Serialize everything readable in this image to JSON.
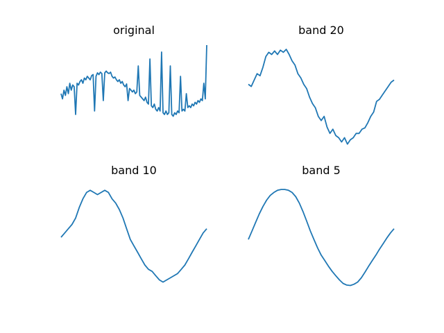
{
  "figure": {
    "line_color": "#1f77b4",
    "axes_visible": false,
    "grid": false
  },
  "chart_data": [
    {
      "type": "line",
      "title": "original",
      "xlim": [
        0,
        1
      ],
      "ylim": [
        -1.6,
        1.6
      ],
      "x": [
        0,
        0.01,
        0.02,
        0.03,
        0.04,
        0.05,
        0.06,
        0.07,
        0.08,
        0.09,
        0.1,
        0.11,
        0.12,
        0.13,
        0.14,
        0.15,
        0.16,
        0.17,
        0.18,
        0.19,
        0.2,
        0.21,
        0.22,
        0.23,
        0.24,
        0.25,
        0.26,
        0.27,
        0.28,
        0.29,
        0.3,
        0.31,
        0.32,
        0.33,
        0.34,
        0.35,
        0.36,
        0.37,
        0.38,
        0.39,
        0.4,
        0.41,
        0.42,
        0.43,
        0.44,
        0.45,
        0.46,
        0.47,
        0.48,
        0.49,
        0.5,
        0.51,
        0.52,
        0.53,
        0.54,
        0.55,
        0.56,
        0.57,
        0.58,
        0.59,
        0.6,
        0.61,
        0.62,
        0.63,
        0.64,
        0.65,
        0.66,
        0.67,
        0.68,
        0.69,
        0.7,
        0.71,
        0.72,
        0.73,
        0.74,
        0.75,
        0.76,
        0.77,
        0.78,
        0.79,
        0.8,
        0.81,
        0.82,
        0.83,
        0.84,
        0.85,
        0.86,
        0.87,
        0.88,
        0.89,
        0.9,
        0.91,
        0.92,
        0.93,
        0.94,
        0.95,
        0.96,
        0.97,
        0.98,
        0.99,
        1.0
      ],
      "y": [
        0.1,
        -0.05,
        0.2,
        0.05,
        0.3,
        0.1,
        0.4,
        0.2,
        0.35,
        0.3,
        -0.5,
        0.4,
        0.35,
        0.45,
        0.5,
        0.4,
        0.55,
        0.5,
        0.6,
        0.55,
        0.5,
        0.62,
        0.65,
        -0.4,
        0.6,
        0.7,
        0.65,
        0.72,
        0.68,
        -0.1,
        0.7,
        0.75,
        0.7,
        0.68,
        0.72,
        0.6,
        0.55,
        0.58,
        0.5,
        0.45,
        0.5,
        0.4,
        0.45,
        0.35,
        0.3,
        0.38,
        -0.1,
        0.25,
        0.2,
        0.15,
        0.2,
        0.1,
        0.15,
        0.9,
        0.05,
        0.0,
        -0.05,
        -0.1,
        0.0,
        -0.15,
        -0.2,
        1.1,
        -0.25,
        -0.3,
        -0.2,
        -0.35,
        -0.4,
        -0.3,
        -0.4,
        1.3,
        -0.45,
        -0.5,
        -0.4,
        -0.5,
        -0.45,
        0.9,
        -0.5,
        -0.55,
        -0.45,
        -0.5,
        -0.4,
        -0.45,
        0.6,
        -0.4,
        -0.35,
        -0.4,
        0.1,
        -0.3,
        -0.25,
        -0.3,
        -0.2,
        -0.25,
        -0.15,
        -0.2,
        -0.1,
        -0.15,
        -0.05,
        -0.1,
        0.4,
        -0.05,
        1.5
      ]
    },
    {
      "type": "line",
      "title": "band 20",
      "xlim": [
        0,
        1
      ],
      "ylim": [
        -1.3,
        1.3
      ],
      "x": [
        0,
        0.02,
        0.04,
        0.06,
        0.08,
        0.1,
        0.12,
        0.14,
        0.16,
        0.18,
        0.2,
        0.22,
        0.24,
        0.26,
        0.28,
        0.3,
        0.32,
        0.34,
        0.36,
        0.38,
        0.4,
        0.42,
        0.44,
        0.46,
        0.48,
        0.5,
        0.52,
        0.54,
        0.56,
        0.58,
        0.6,
        0.62,
        0.64,
        0.66,
        0.68,
        0.7,
        0.72,
        0.74,
        0.76,
        0.78,
        0.8,
        0.82,
        0.84,
        0.86,
        0.88,
        0.9,
        0.92,
        0.94,
        0.96,
        0.98,
        1.0
      ],
      "y": [
        0.3,
        0.25,
        0.4,
        0.55,
        0.5,
        0.7,
        0.95,
        1.05,
        1.0,
        1.08,
        1.0,
        1.1,
        1.05,
        1.12,
        1.0,
        0.85,
        0.75,
        0.55,
        0.45,
        0.3,
        0.2,
        0.0,
        -0.15,
        -0.25,
        -0.45,
        -0.55,
        -0.45,
        -0.7,
        -0.85,
        -0.75,
        -0.9,
        -0.95,
        -1.05,
        -0.95,
        -1.1,
        -1.0,
        -0.95,
        -0.85,
        -0.85,
        -0.75,
        -0.72,
        -0.6,
        -0.45,
        -0.35,
        -0.1,
        -0.05,
        0.05,
        0.15,
        0.25,
        0.35,
        0.4
      ]
    },
    {
      "type": "line",
      "title": "band 10",
      "xlim": [
        0,
        1
      ],
      "ylim": [
        -1.3,
        1.3
      ],
      "x": [
        0,
        0.025,
        0.05,
        0.075,
        0.1,
        0.125,
        0.15,
        0.175,
        0.2,
        0.225,
        0.25,
        0.275,
        0.3,
        0.325,
        0.35,
        0.375,
        0.4,
        0.425,
        0.45,
        0.475,
        0.5,
        0.525,
        0.55,
        0.575,
        0.6,
        0.625,
        0.65,
        0.675,
        0.7,
        0.725,
        0.75,
        0.775,
        0.8,
        0.825,
        0.85,
        0.875,
        0.9,
        0.925,
        0.95,
        0.975,
        1.0
      ],
      "y": [
        0.0,
        0.1,
        0.2,
        0.3,
        0.45,
        0.7,
        0.9,
        1.05,
        1.1,
        1.05,
        1.0,
        1.05,
        1.1,
        1.05,
        0.9,
        0.8,
        0.65,
        0.45,
        0.2,
        -0.05,
        -0.2,
        -0.35,
        -0.5,
        -0.65,
        -0.75,
        -0.8,
        -0.9,
        -1.0,
        -1.05,
        -1.0,
        -0.95,
        -0.9,
        -0.85,
        -0.75,
        -0.65,
        -0.5,
        -0.35,
        -0.2,
        -0.05,
        0.1,
        0.2
      ]
    },
    {
      "type": "line",
      "title": "band 5",
      "xlim": [
        0,
        1
      ],
      "ylim": [
        -1.3,
        1.3
      ],
      "x": [
        0,
        0.025,
        0.05,
        0.075,
        0.1,
        0.125,
        0.15,
        0.175,
        0.2,
        0.225,
        0.25,
        0.275,
        0.3,
        0.325,
        0.35,
        0.375,
        0.4,
        0.425,
        0.45,
        0.475,
        0.5,
        0.525,
        0.55,
        0.575,
        0.6,
        0.625,
        0.65,
        0.675,
        0.7,
        0.725,
        0.75,
        0.775,
        0.8,
        0.825,
        0.85,
        0.875,
        0.9,
        0.925,
        0.95,
        0.975,
        1.0
      ],
      "y": [
        -0.05,
        0.15,
        0.35,
        0.55,
        0.72,
        0.87,
        0.98,
        1.05,
        1.1,
        1.12,
        1.12,
        1.1,
        1.05,
        0.95,
        0.8,
        0.6,
        0.38,
        0.15,
        -0.05,
        -0.25,
        -0.42,
        -0.55,
        -0.68,
        -0.8,
        -0.9,
        -1.0,
        -1.08,
        -1.12,
        -1.13,
        -1.1,
        -1.05,
        -0.95,
        -0.82,
        -0.68,
        -0.55,
        -0.42,
        -0.28,
        -0.15,
        -0.02,
        0.1,
        0.2
      ]
    }
  ]
}
